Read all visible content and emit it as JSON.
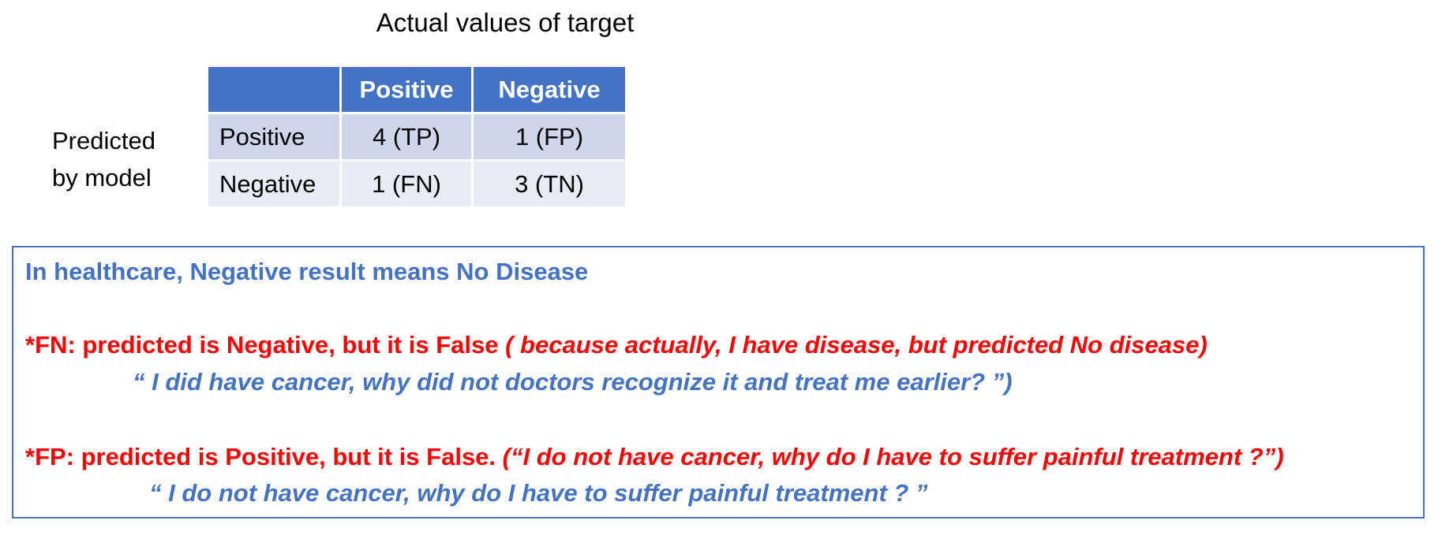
{
  "confusion_matrix": {
    "title": "Actual values of target",
    "row_axis_label_line1": "Predicted",
    "row_axis_label_line2": "by model",
    "header": [
      "",
      "Positive",
      "Negative"
    ],
    "rows": [
      {
        "label": "Positive",
        "cells": [
          "4 (TP)",
          "1 (FP)"
        ]
      },
      {
        "label": "Negative",
        "cells": [
          "1 (FN)",
          "3 (TN)"
        ]
      }
    ]
  },
  "note": {
    "heading": "In healthcare, Negative result means No Disease",
    "fn_line": "*FN: predicted is Negative, but it is False ",
    "fn_reason": "( because actually, I have disease, but predicted No disease)",
    "fn_quote": "“ I did have cancer, why did not doctors recognize it and treat me earlier? ”)",
    "fp_line": "*FP: predicted is Positive, but it is False. ",
    "fp_reason": "(“I do not have cancer, why do I have to suffer painful treatment ?”)",
    "fp_quote": "“ I do not have cancer, why do I have to suffer painful treatment ? ”"
  },
  "colors": {
    "header_blue": "#4472c4",
    "row_dark": "#cfd5ea",
    "row_light": "#e9ebf5",
    "text_red": "#ff0000",
    "text_blue": "#4472c4"
  }
}
